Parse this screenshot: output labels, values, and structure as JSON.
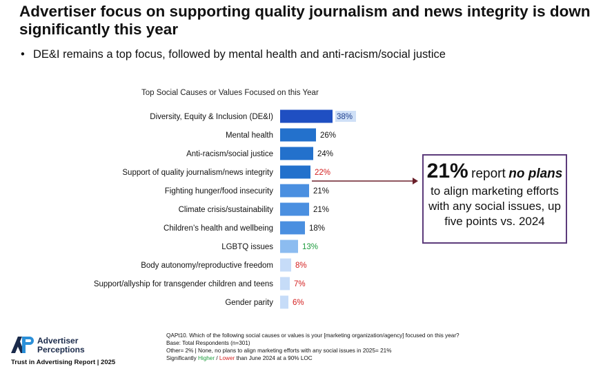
{
  "header": {
    "title": "Advertiser focus on supporting quality journalism and news integrity is down significantly this year",
    "bullet": "DE&I remains a top focus, followed by mental health and anti-racism/social justice"
  },
  "chart_data": {
    "type": "bar",
    "orientation": "horizontal",
    "title": "Top Social Causes or Values Focused on this Year",
    "categories": [
      "Diversity, Equity & Inclusion (DE&I)",
      "Mental health",
      "Anti-racism/social justice",
      "Support of quality journalism/news integrity",
      "Fighting hunger/food insecurity",
      "Climate crisis/sustainability",
      "Children’s health and wellbeing",
      "LGBTQ issues",
      "Body autonomy/reproductive freedom",
      "Support/allyship for transgender children and teens",
      "Gender parity"
    ],
    "values": [
      38,
      26,
      24,
      22,
      21,
      21,
      18,
      13,
      8,
      7,
      6
    ],
    "value_labels": [
      "38%",
      "26%",
      "24%",
      "22%",
      "21%",
      "21%",
      "18%",
      "13%",
      "8%",
      "7%",
      "6%"
    ],
    "bar_colors": [
      "#1f4fc2",
      "#2371cc",
      "#2371cc",
      "#2371cc",
      "#4a8fe0",
      "#4a8fe0",
      "#4a8fe0",
      "#8cbcf0",
      "#c6dcf8",
      "#c6dcf8",
      "#c6dcf8"
    ],
    "label_colors": [
      "#1f3f8f",
      "#111111",
      "#111111",
      "#d42020",
      "#111111",
      "#111111",
      "#111111",
      "#1a9a3a",
      "#d42020",
      "#d42020",
      "#d42020"
    ],
    "highlight_first_label": true,
    "grid": false
  },
  "callout": {
    "percent": "21%",
    "report": "report",
    "emphasis": "no plans",
    "rest": "to align marketing efforts with any social issues, up five points vs. 2024",
    "border_color": "#5b3a7a"
  },
  "logo": {
    "line1": "Advertiser",
    "line2": "Perceptions",
    "sub": "Trust in Advertising Report | 2025"
  },
  "footnote": {
    "line1": "QAPt10. Which of the following social causes or values is your [marketing organization/agency] focused on this year?",
    "line2": "Base: Total Respondents (n=301)",
    "line3": "Other= 2% | None, no plans to align marketing efforts with any social issues in 2025= 21%",
    "line4_pre": "Significantly ",
    "line4_higher": "Higher",
    "line4_sep": " / ",
    "line4_lower": "Lower",
    "line4_post": " than June 2024 at a 90% LOC"
  }
}
